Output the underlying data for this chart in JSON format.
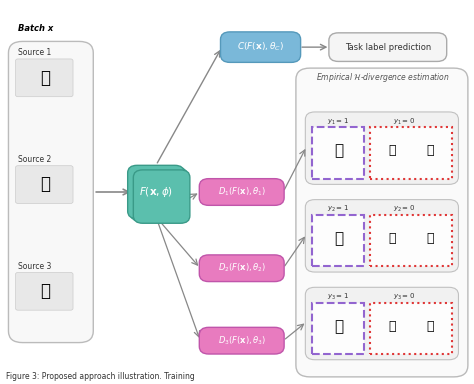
{
  "title": "",
  "caption": "Figure 3: Proposed approach illustration. Training",
  "background": "#ffffff",
  "colors": {
    "teal": "#5bbfad",
    "pink": "#e87bbf",
    "blue": "#7ab8d9",
    "light_gray": "#f0f0f0",
    "arrow_gray": "#999999",
    "purple_dashed": "#8855cc",
    "red_dotted": "#dd2222",
    "box_outline": "#aaaaaa"
  },
  "labels": {
    "batch_x": "Batch x",
    "source1": "Source 1",
    "source2": "Source 2",
    "source3": "Source 3",
    "F_phi": "$F(\\mathbf{x}, \\phi)$",
    "C_theta": "$C(F(\\mathbf{x}), \\theta_C)$",
    "D1": "$D_1(F(\\mathbf{x}), \\theta_1)$",
    "D2": "$D_2(F(\\mathbf{x}), \\theta_2)$",
    "D3": "$D_3(F(\\mathbf{x}), \\theta_3)$",
    "task_pred": "Task label prediction",
    "empirical": "Empirical $\\mathcal{H}$-divergence estimation",
    "y1_1": "$y_1 = 1$",
    "y1_0": "$y_1 = 0$",
    "y2_1": "$y_2 = 1$",
    "y2_0": "$y_2 = 0$",
    "y3_1": "$y_3 = 1$",
    "y3_0": "$y_3 = 0$"
  }
}
